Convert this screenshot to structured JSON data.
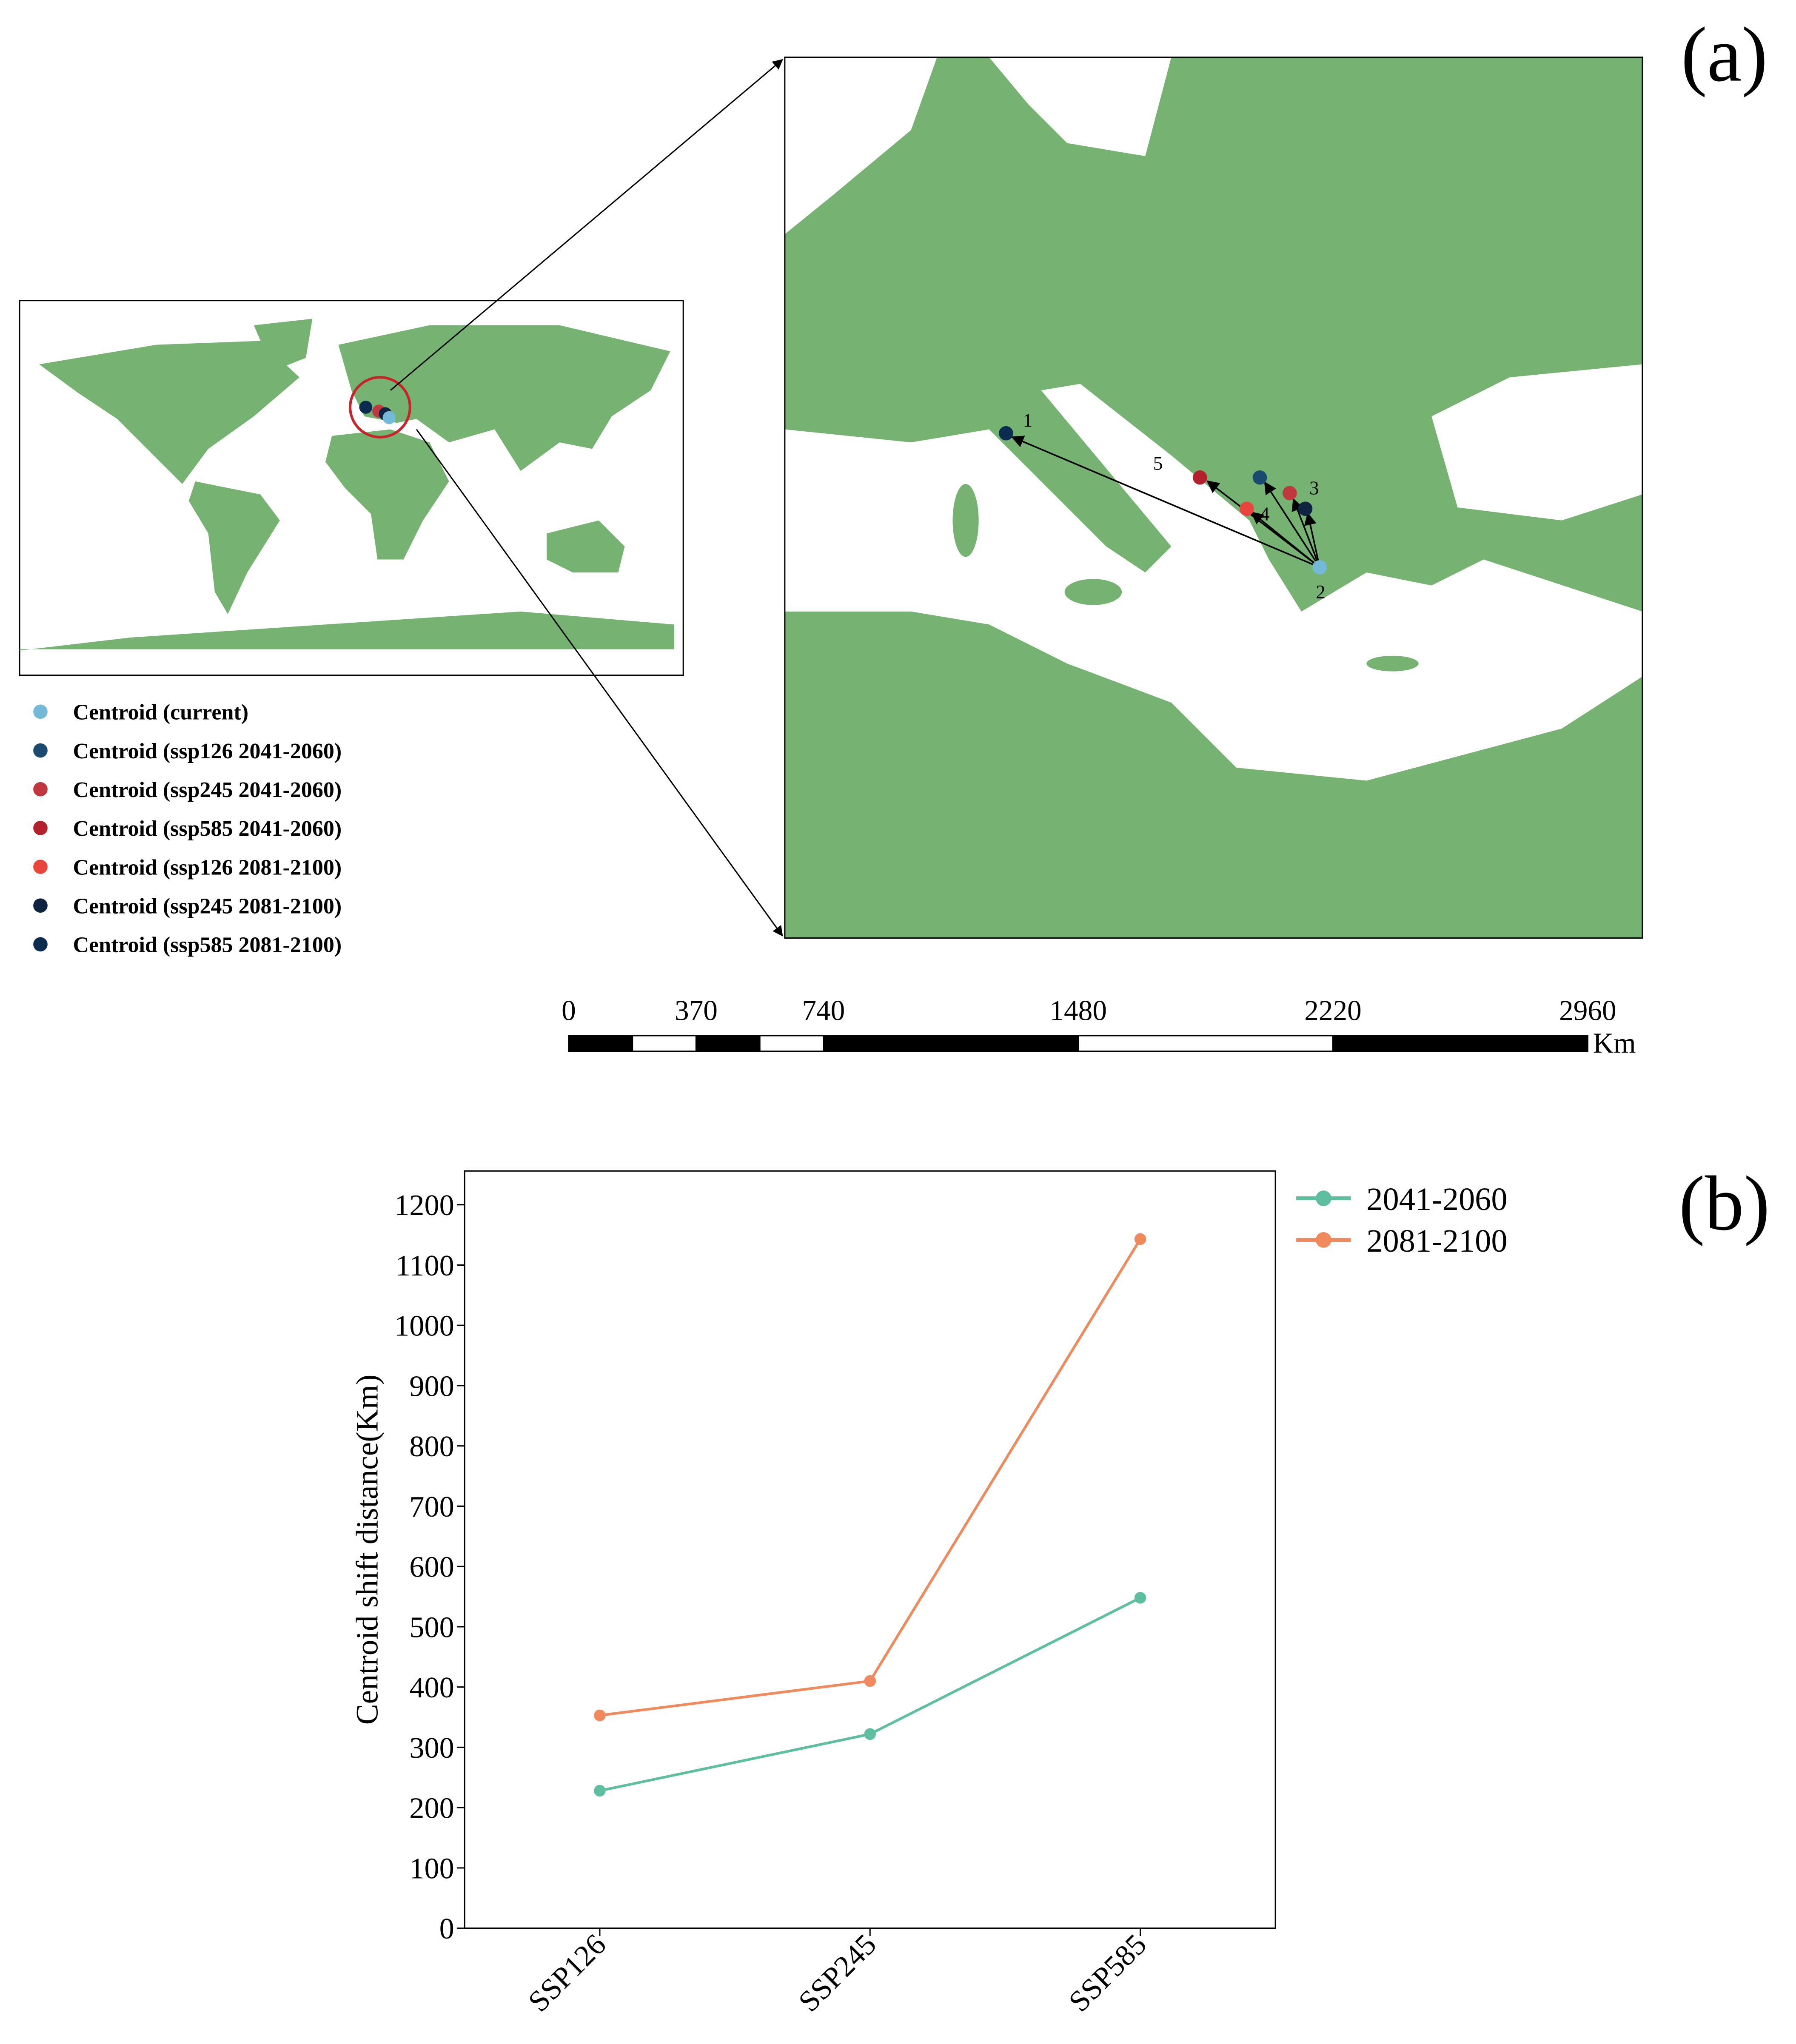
{
  "panel_labels": [
    "(a)",
    "(b)"
  ],
  "map": {
    "legend": [
      {
        "label": "Centroid (current)",
        "color": "#74b9d8"
      },
      {
        "label": "Centroid (ssp126 2041-2060)",
        "color": "#1a4a6e"
      },
      {
        "label": "Centroid (ssp245 2041-2060)",
        "color": "#c1373f"
      },
      {
        "label": "Centroid (ssp585 2041-2060)",
        "color": "#b3202e"
      },
      {
        "label": "Centroid (ssp126 2081-2100)",
        "color": "#e8453c"
      },
      {
        "label": "Centroid (ssp245 2081-2100)",
        "color": "#0f2440"
      },
      {
        "label": "Centroid (ssp585 2081-2100)",
        "color": "#0b2b4f"
      }
    ],
    "point_labels": [
      "1",
      "2",
      "3",
      "4",
      "5"
    ],
    "scale_bar": {
      "ticks": [
        0,
        370,
        740,
        1480,
        2220,
        2960
      ],
      "unit": "Km"
    }
  },
  "chart_data": {
    "type": "line",
    "y_label": "Centroid shift distance(Km)",
    "categories": [
      "SSP126",
      "SSP245",
      "SSP585"
    ],
    "series": [
      {
        "name": "2041-2060",
        "color": "#5dbfa0",
        "values": [
          228,
          322,
          548
        ]
      },
      {
        "name": "2081-2100",
        "color": "#f08a5d",
        "values": [
          353,
          410,
          1143
        ]
      }
    ],
    "ylim": [
      0,
      1256
    ],
    "yticks": [
      0,
      100,
      200,
      300,
      400,
      500,
      600,
      700,
      800,
      900,
      1000,
      1100,
      1200
    ]
  }
}
